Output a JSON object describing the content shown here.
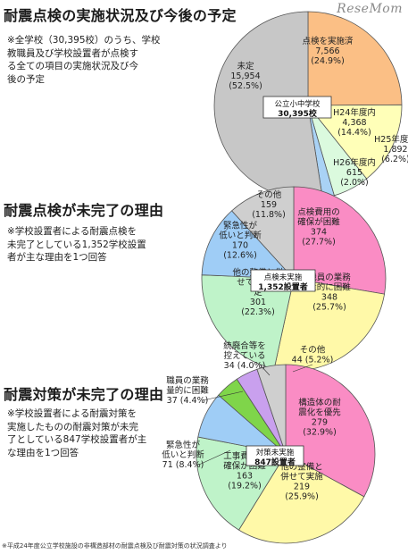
{
  "logo": "ReseMom",
  "footer": "※平成24年度公立学校施設の非構造部材の耐震点検及び耐震対策の状況調査より",
  "chart_data": [
    {
      "type": "pie",
      "title": "耐震点検の実施状況及び今後の予定",
      "note": "※全学校（30,395校）のうち、学校\n教職員及び学校設置者が点検す\nる全ての項目の実施状況及び今\n後の予定",
      "center_label": [
        "公立小中学校",
        "30,395校"
      ],
      "slices": [
        {
          "name": "点検を実施済",
          "value": 7566,
          "value_label": "7,566",
          "percent": "(24.9%)",
          "color": "#fbbf85"
        },
        {
          "name": "H24年度内",
          "value": 4368,
          "value_label": "4,368",
          "percent": "(14.4%)",
          "color": "#ffffb8"
        },
        {
          "name": "H25年度内",
          "value": 1892,
          "value_label": "1,892",
          "percent": "(6.2%)",
          "color": "#dbfade"
        },
        {
          "name": "H26年度内",
          "value": 615,
          "value_label": "615",
          "percent": "(2.0%)",
          "color": "#a9d2f5"
        },
        {
          "name": "未定",
          "value": 15954,
          "value_label": "15,954",
          "percent": "(52.5%)",
          "color": "#c7c7c7"
        }
      ]
    },
    {
      "type": "pie",
      "title": "耐震点検が未完了の理由",
      "note": "※学校設置者による耐震点検を\n未完了としている1,352学校設置\n者が主な理由を1つ回答",
      "center_label": [
        "点検未実施",
        "1,352設置者"
      ],
      "slices": [
        {
          "name": "点検費用の確保が困難",
          "value": 374,
          "value_label": "374",
          "percent": "(27.7%)",
          "color": "#fa8cc4"
        },
        {
          "name": "職員の業務量的に困難",
          "value": 348,
          "value_label": "348",
          "percent": "(25.7%)",
          "color": "#fff9a8"
        },
        {
          "name": "他の整備と併せて実施予定",
          "value": 301,
          "value_label": "301",
          "percent": "(22.3%)",
          "color": "#bff3c9"
        },
        {
          "name": "緊急性が低いと判断",
          "value": 170,
          "value_label": "170",
          "percent": "(12.6%)",
          "color": "#9fcdf6"
        },
        {
          "name": "その他",
          "value": 159,
          "value_label": "159",
          "percent": "(11.8%)",
          "color": "#cfcfcf"
        }
      ]
    },
    {
      "type": "pie",
      "title": "耐震対策が未完了の理由",
      "note": "※学校設置者による耐震対策を\n実施したものの耐震対策が未完\n了としている847学校設置者が主\nな理由を1つ回答",
      "center_label": [
        "対策未実施",
        "847設置者"
      ],
      "slices": [
        {
          "name": "構造体の耐震化を優先",
          "value": 279,
          "value_label": "279",
          "percent": "(32.9%)",
          "color": "#fa8cc4"
        },
        {
          "name": "他の整備と併せて実施",
          "value": 219,
          "value_label": "219",
          "percent": "(25.9%)",
          "color": "#fff9a8"
        },
        {
          "name": "工事費用の確保が困難",
          "value": 163,
          "value_label": "163",
          "percent": "(19.2%)",
          "color": "#bff3c9"
        },
        {
          "name": "緊急性が低いと判断",
          "value": 71,
          "value_label": "71",
          "percent": "(8.4%)",
          "color": "#9fcdf6"
        },
        {
          "name": "職員の業務量的に困難",
          "value": 37,
          "value_label": "37",
          "percent": "(4.4%)",
          "color": "#7fd54a"
        },
        {
          "name": "統廃合等を控えている",
          "value": 34,
          "value_label": "34",
          "percent": "(4.0%)",
          "color": "#c9a0ee"
        },
        {
          "name": "その他",
          "value": 44,
          "value_label": "44",
          "percent": "(5.2%)",
          "color": "#cfcfcf"
        }
      ]
    }
  ]
}
